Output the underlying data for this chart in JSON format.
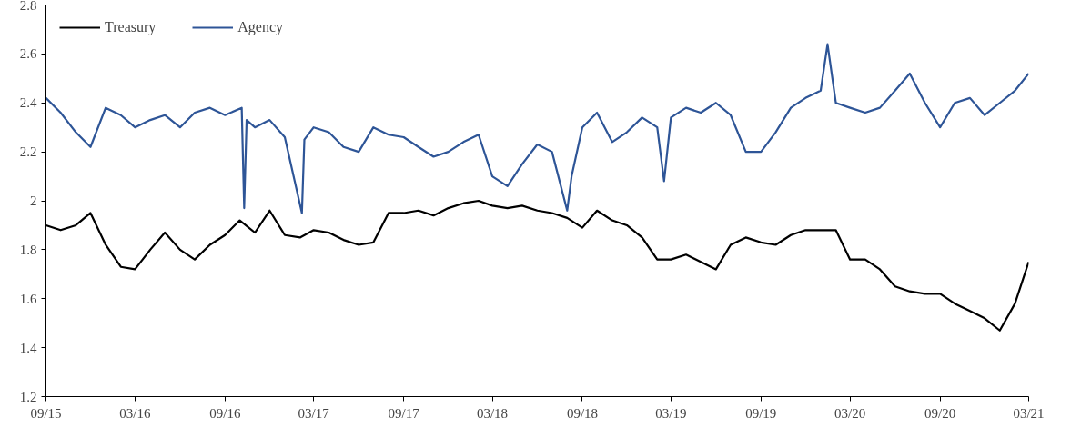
{
  "chart_data": {
    "type": "line",
    "xlim": [
      "2015-09-01",
      "2021-03-01"
    ],
    "ylim": [
      1.2,
      2.8
    ],
    "xticks": [
      {
        "value": "2015-09-01",
        "label": "09/15"
      },
      {
        "value": "2016-03-01",
        "label": "03/16"
      },
      {
        "value": "2016-09-01",
        "label": "09/16"
      },
      {
        "value": "2017-03-01",
        "label": "03/17"
      },
      {
        "value": "2017-09-01",
        "label": "09/17"
      },
      {
        "value": "2018-03-01",
        "label": "03/18"
      },
      {
        "value": "2018-09-01",
        "label": "09/18"
      },
      {
        "value": "2019-03-01",
        "label": "03/19"
      },
      {
        "value": "2019-09-01",
        "label": "09/19"
      },
      {
        "value": "2020-03-01",
        "label": "03/20"
      },
      {
        "value": "2020-09-01",
        "label": "09/20"
      },
      {
        "value": "2021-03-01",
        "label": "03/21"
      }
    ],
    "yticks": [
      1.2,
      1.4,
      1.6,
      1.8,
      2,
      2.2,
      2.4,
      2.6,
      2.8
    ],
    "grid": false,
    "legend": "top left",
    "marker": "none",
    "line_style": "solid",
    "series": [
      {
        "name": "Treasury",
        "color": "#000000",
        "x": [
          "2015-09-01",
          "2015-10-01",
          "2015-11-01",
          "2015-12-01",
          "2016-01-01",
          "2016-02-01",
          "2016-03-01",
          "2016-04-01",
          "2016-05-01",
          "2016-06-01",
          "2016-07-01",
          "2016-08-01",
          "2016-09-01",
          "2016-10-01",
          "2016-11-01",
          "2016-12-01",
          "2017-01-01",
          "2017-02-01",
          "2017-03-01",
          "2017-04-01",
          "2017-05-01",
          "2017-06-01",
          "2017-07-01",
          "2017-08-01",
          "2017-09-01",
          "2017-10-01",
          "2017-11-01",
          "2017-12-01",
          "2018-01-01",
          "2018-02-01",
          "2018-03-01",
          "2018-04-01",
          "2018-05-01",
          "2018-06-01",
          "2018-07-01",
          "2018-08-01",
          "2018-09-01",
          "2018-10-01",
          "2018-11-01",
          "2018-12-01",
          "2019-01-01",
          "2019-02-01",
          "2019-03-01",
          "2019-04-01",
          "2019-05-01",
          "2019-06-01",
          "2019-07-01",
          "2019-08-01",
          "2019-09-01",
          "2019-10-01",
          "2019-11-01",
          "2019-12-01",
          "2020-01-01",
          "2020-02-01",
          "2020-03-01",
          "2020-04-01",
          "2020-05-01",
          "2020-06-01",
          "2020-07-01",
          "2020-08-01",
          "2020-09-01",
          "2020-10-01",
          "2020-11-01",
          "2020-12-01",
          "2021-01-01",
          "2021-02-01",
          "2021-03-01"
        ],
        "values": [
          1.9,
          1.88,
          1.9,
          1.95,
          1.82,
          1.73,
          1.72,
          1.8,
          1.87,
          1.8,
          1.76,
          1.82,
          1.86,
          1.92,
          1.87,
          1.96,
          1.86,
          1.85,
          1.88,
          1.87,
          1.84,
          1.82,
          1.83,
          1.95,
          1.95,
          1.96,
          1.94,
          1.97,
          1.99,
          2.0,
          1.98,
          1.97,
          1.98,
          1.96,
          1.95,
          1.93,
          1.89,
          1.96,
          1.92,
          1.9,
          1.85,
          1.76,
          1.76,
          1.78,
          1.75,
          1.72,
          1.82,
          1.85,
          1.83,
          1.82,
          1.86,
          1.88,
          1.88,
          1.88,
          1.76,
          1.76,
          1.72,
          1.65,
          1.63,
          1.62,
          1.62,
          1.58,
          1.55,
          1.52,
          1.47,
          1.58,
          1.75
        ]
      },
      {
        "name": "Agency",
        "color": "#2e5597",
        "x": [
          "2015-09-01",
          "2015-10-01",
          "2015-11-01",
          "2015-12-01",
          "2016-01-01",
          "2016-02-01",
          "2016-03-01",
          "2016-04-01",
          "2016-05-01",
          "2016-06-01",
          "2016-07-01",
          "2016-08-01",
          "2016-09-01",
          "2016-10-05",
          "2016-10-10",
          "2016-10-15",
          "2016-11-01",
          "2016-12-01",
          "2017-01-01",
          "2017-02-05",
          "2017-02-10",
          "2017-03-01",
          "2017-04-01",
          "2017-05-01",
          "2017-06-01",
          "2017-07-01",
          "2017-08-01",
          "2017-09-01",
          "2017-10-01",
          "2017-11-01",
          "2017-12-01",
          "2018-01-01",
          "2018-02-01",
          "2018-03-01",
          "2018-04-01",
          "2018-05-01",
          "2018-06-01",
          "2018-07-01",
          "2018-08-01",
          "2018-08-10",
          "2018-09-01",
          "2018-10-01",
          "2018-11-01",
          "2018-12-01",
          "2019-01-01",
          "2019-02-01",
          "2019-02-15",
          "2019-03-01",
          "2019-04-01",
          "2019-05-01",
          "2019-06-01",
          "2019-07-01",
          "2019-08-01",
          "2019-09-01",
          "2019-10-01",
          "2019-11-01",
          "2019-12-01",
          "2020-01-01",
          "2020-01-15",
          "2020-02-01",
          "2020-03-01",
          "2020-04-01",
          "2020-05-01",
          "2020-06-01",
          "2020-07-01",
          "2020-08-01",
          "2020-09-01",
          "2020-10-01",
          "2020-11-01",
          "2020-12-01",
          "2021-01-01",
          "2021-02-01",
          "2021-03-01"
        ],
        "values": [
          2.42,
          2.36,
          2.28,
          2.22,
          2.38,
          2.35,
          2.3,
          2.33,
          2.35,
          2.3,
          2.36,
          2.38,
          2.35,
          2.38,
          1.97,
          2.33,
          2.3,
          2.33,
          2.26,
          1.95,
          2.25,
          2.3,
          2.28,
          2.22,
          2.2,
          2.3,
          2.27,
          2.26,
          2.22,
          2.18,
          2.2,
          2.24,
          2.27,
          2.1,
          2.06,
          2.15,
          2.23,
          2.2,
          1.96,
          2.1,
          2.3,
          2.36,
          2.24,
          2.28,
          2.34,
          2.3,
          2.08,
          2.34,
          2.38,
          2.36,
          2.4,
          2.35,
          2.2,
          2.2,
          2.28,
          2.38,
          2.42,
          2.45,
          2.64,
          2.4,
          2.38,
          2.36,
          2.38,
          2.45,
          2.52,
          2.4,
          2.3,
          2.4,
          2.42,
          2.35,
          2.4,
          2.45,
          2.52
        ]
      }
    ]
  }
}
